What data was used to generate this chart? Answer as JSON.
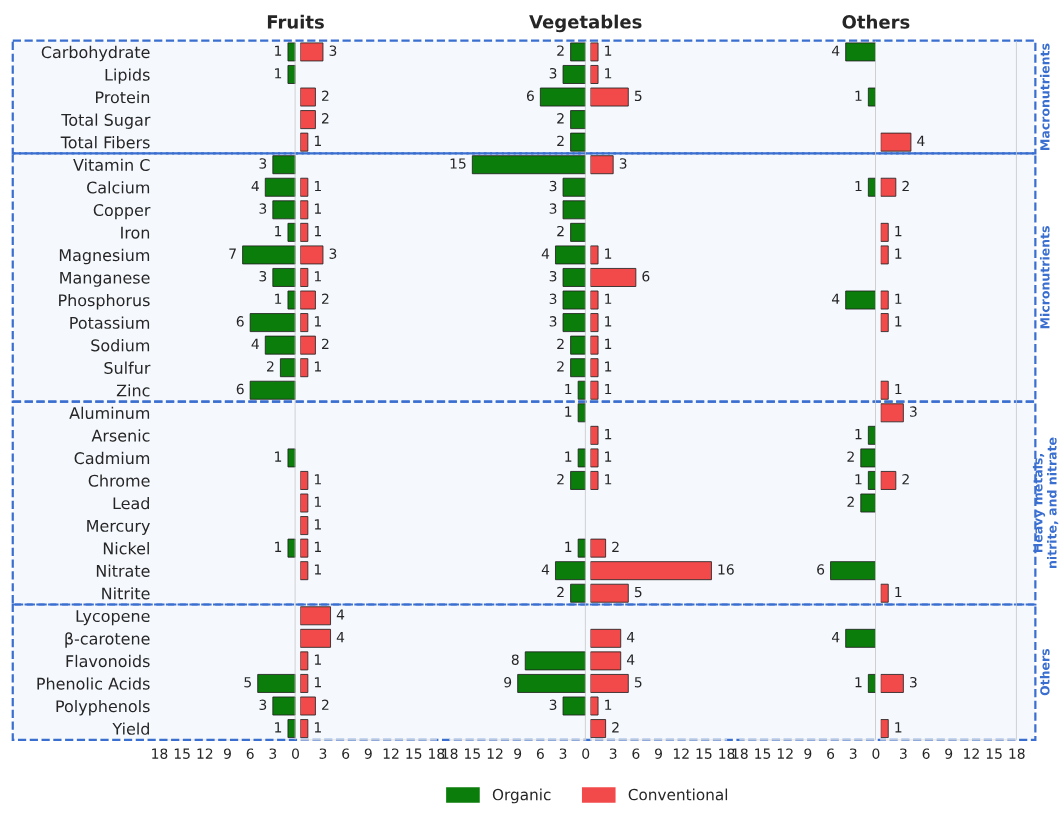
{
  "chart_data": [
    {
      "type": "bar",
      "orientation": "horizontal",
      "title": "Fruits",
      "data_labels": true,
      "categories": [
        "Carbohydrate",
        "Lipids",
        "Protein",
        "Total Sugar",
        "Total Fibers",
        "Vitamin C",
        "Calcium",
        "Copper",
        "Iron",
        "Magnesium",
        "Manganese",
        "Phosphorus",
        "Potassium",
        "Sodium",
        "Sulfur",
        "Zinc",
        "Aluminum",
        "Arsenic",
        "Cadmium",
        "Chrome",
        "Lead",
        "Mercury",
        "Nickel",
        "Nitrate",
        "Nitrite",
        "Lycopene",
        "β-carotene",
        "Flavonoids",
        "Phenolic Acids",
        "Polyphenols",
        "Yield"
      ],
      "xlim": [
        18,
        0
      ],
      "xticks": [
        18,
        15,
        12,
        9,
        6,
        3,
        0
      ],
      "ref_lines": [
        {
          "axis": "x",
          "value": 0,
          "color": "#c8c8c8"
        }
      ],
      "bands": [
        {
          "axis": "y",
          "from": "Carbohydrate",
          "to": "Total Fibers",
          "label": "Macronutrients",
          "color": "#3a6fd0"
        },
        {
          "axis": "y",
          "from": "Vitamin C",
          "to": "Zinc",
          "label": "Micronutrients",
          "color": "#3a6fd0"
        },
        {
          "axis": "y",
          "from": "Aluminum",
          "to": "Nitrite",
          "label": "Heavy metals,\nnitrite, and nitrate",
          "color": "#3a6fd0"
        },
        {
          "axis": "y",
          "from": "Lycopene",
          "to": "Yield",
          "label": "Others",
          "color": "#3a6fd0"
        }
      ],
      "series": [
        {
          "color": "#0a7d0a",
          "values": [
            1,
            1,
            null,
            null,
            null,
            3,
            4,
            3,
            1,
            7,
            3,
            1,
            6,
            4,
            2,
            6,
            null,
            null,
            1,
            null,
            null,
            null,
            1,
            null,
            null,
            null,
            null,
            null,
            5,
            3,
            1
          ]
        }
      ]
    },
    {
      "type": "bar",
      "orientation": "horizontal",
      "data_labels": true,
      "tick_labels": "x",
      "xlim": [
        0,
        18
      ],
      "xticks": [
        3,
        6,
        9,
        12,
        15,
        18
      ],
      "series": [
        {
          "color": "#f24a4a",
          "values": [
            3,
            null,
            2,
            2,
            1,
            null,
            1,
            1,
            1,
            3,
            1,
            2,
            1,
            2,
            1,
            null,
            null,
            null,
            null,
            1,
            1,
            1,
            1,
            1,
            null,
            4,
            4,
            1,
            1,
            2,
            1
          ]
        }
      ]
    },
    {
      "type": "bar",
      "orientation": "horizontal",
      "title": "Vegetables",
      "data_labels": true,
      "tick_labels": "x",
      "legend": "bottom",
      "xlim": [
        18,
        0
      ],
      "xticks": [
        18,
        15,
        12,
        9,
        6,
        3,
        0
      ],
      "ref_lines": [
        {
          "axis": "x",
          "value": 0,
          "color": "#c8c8c8"
        }
      ],
      "series": [
        {
          "name": "Organic",
          "color": "#0a7d0a",
          "values": [
            2,
            3,
            6,
            2,
            2,
            15,
            3,
            3,
            2,
            4,
            3,
            3,
            3,
            2,
            2,
            1,
            1,
            null,
            1,
            2,
            null,
            null,
            1,
            4,
            2,
            null,
            null,
            8,
            9,
            3,
            null
          ]
        }
      ]
    },
    {
      "type": "bar",
      "orientation": "horizontal",
      "data_labels": true,
      "tick_labels": "x",
      "legend": "bottom",
      "xlim": [
        0,
        18
      ],
      "xticks": [
        3,
        6,
        9,
        12,
        15,
        18
      ],
      "series": [
        {
          "name": "Conventional",
          "color": "#f24a4a",
          "values": [
            1,
            1,
            5,
            null,
            null,
            3,
            null,
            null,
            null,
            1,
            6,
            1,
            1,
            1,
            1,
            1,
            null,
            1,
            1,
            1,
            null,
            null,
            2,
            16,
            5,
            null,
            4,
            4,
            5,
            1,
            2
          ]
        }
      ]
    },
    {
      "type": "bar",
      "orientation": "horizontal",
      "title": "Others",
      "data_labels": true,
      "tick_labels": "x",
      "xlim": [
        18,
        0
      ],
      "xticks": [
        18,
        15,
        12,
        9,
        6,
        3,
        0
      ],
      "ref_lines": [
        {
          "axis": "x",
          "value": 0,
          "color": "#c8c8c8"
        }
      ],
      "series": [
        {
          "color": "#0a7d0a",
          "values": [
            4,
            null,
            1,
            null,
            null,
            null,
            1,
            null,
            null,
            null,
            null,
            4,
            null,
            null,
            null,
            null,
            null,
            1,
            2,
            1,
            2,
            null,
            null,
            6,
            null,
            null,
            4,
            null,
            1,
            null,
            null
          ]
        }
      ]
    },
    {
      "type": "bar",
      "orientation": "horizontal",
      "data_labels": true,
      "tick_labels": "x",
      "xlim": [
        0,
        18
      ],
      "xticks": [
        3,
        6,
        9,
        12,
        15,
        18
      ],
      "ref_lines": [
        {
          "axis": "x",
          "value": 18,
          "color": "#c8c8c8"
        }
      ],
      "series": [
        {
          "color": "#f24a4a",
          "values": [
            null,
            null,
            null,
            null,
            4,
            null,
            2,
            null,
            1,
            1,
            null,
            1,
            1,
            null,
            null,
            1,
            3,
            null,
            null,
            2,
            null,
            null,
            null,
            null,
            1,
            null,
            null,
            null,
            3,
            null,
            1
          ]
        }
      ]
    }
  ]
}
